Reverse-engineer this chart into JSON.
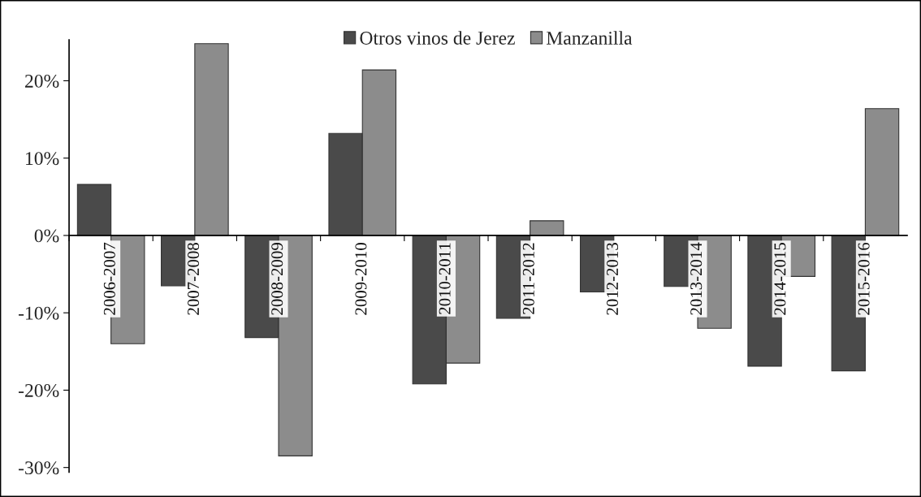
{
  "chart_data": {
    "type": "bar",
    "categories": [
      "2006-2007",
      "2007-2008",
      "2008-2009",
      "2009-2010",
      "2010-2011",
      "2011-2012",
      "2012-2013",
      "2013-2014",
      "2014-2015",
      "2015-2016"
    ],
    "series": [
      {
        "name": "Otros vinos de Jerez",
        "color": "#4a4a4a",
        "values": [
          6.6,
          -6.5,
          -13.2,
          13.2,
          -19.2,
          -10.7,
          -7.3,
          -6.6,
          -16.9,
          -17.5
        ]
      },
      {
        "name": "Manzanilla",
        "color": "#8c8c8c",
        "values": [
          -14.0,
          24.8,
          -28.5,
          21.4,
          -16.5,
          1.9,
          null,
          -12.0,
          -5.3,
          16.4
        ]
      }
    ],
    "ylim": [
      -30.6,
      25.3
    ],
    "yticks": [
      {
        "value": -30,
        "label": "-30%"
      },
      {
        "value": -20,
        "label": "-20%"
      },
      {
        "value": -10,
        "label": "-10%"
      },
      {
        "value": 0,
        "label": "0%"
      },
      {
        "value": 10,
        "label": "10%"
      },
      {
        "value": 20,
        "label": "20%"
      }
    ],
    "grid": false,
    "legend": "top"
  }
}
